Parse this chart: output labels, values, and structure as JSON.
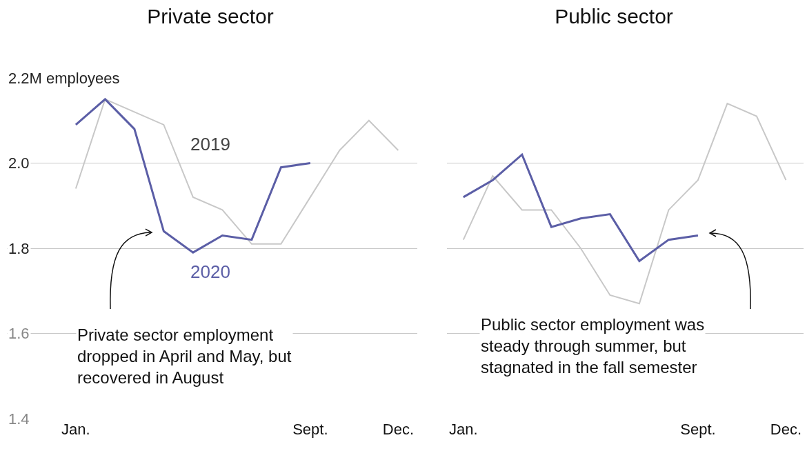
{
  "chart_data": [
    {
      "type": "line",
      "title": "Private sector",
      "categories": [
        "Jan.",
        null,
        null,
        null,
        null,
        null,
        null,
        null,
        "Sept.",
        null,
        null,
        "Dec."
      ],
      "series": [
        {
          "name": "2019",
          "color": "#c8c8c8",
          "values": [
            1.94,
            2.15,
            2.12,
            2.09,
            1.92,
            1.89,
            1.81,
            1.81,
            1.92,
            2.03,
            2.1,
            2.03
          ]
        },
        {
          "name": "2020",
          "color": "#5b5ea6",
          "values": [
            2.09,
            2.15,
            2.08,
            1.84,
            1.79,
            1.83,
            1.82,
            1.99,
            2.0,
            null,
            null,
            null
          ]
        }
      ],
      "ylim": [
        1.4,
        2.2
      ],
      "yticks": [
        1.4,
        1.6,
        1.8,
        {
          "value": 2.0,
          "label": "2.0"
        },
        {
          "value": 2.2,
          "label": "2.2M employees"
        }
      ],
      "grid": "y",
      "legend": false,
      "marker": "none",
      "line_style": "solid",
      "annotations": [
        "Private sector employment dropped in April and May, but recovered in August"
      ]
    },
    {
      "type": "line",
      "title": "Public sector",
      "categories": [
        "Jan.",
        null,
        null,
        null,
        null,
        null,
        null,
        null,
        "Sept.",
        null,
        null,
        "Dec."
      ],
      "series": [
        {
          "color": "#c8c8c8",
          "values": [
            1.82,
            1.97,
            1.89,
            1.89,
            1.8,
            1.69,
            1.67,
            1.89,
            1.96,
            2.14,
            2.11,
            1.96
          ]
        },
        {
          "color": "#5b5ea6",
          "values": [
            1.92,
            1.96,
            2.02,
            1.85,
            1.87,
            1.88,
            1.77,
            1.82,
            1.83,
            null,
            null,
            null
          ]
        }
      ],
      "ylim": [
        1.4,
        2.2
      ],
      "yticks": [
        1.4,
        1.6,
        1.8,
        2.0,
        2.2
      ],
      "grid": "y",
      "legend": false,
      "marker": "none",
      "line_style": "solid",
      "tick_labels": "x",
      "annotations": [
        "Public sector employment was steady through summer, but stagnated in the fall semester"
      ]
    }
  ]
}
